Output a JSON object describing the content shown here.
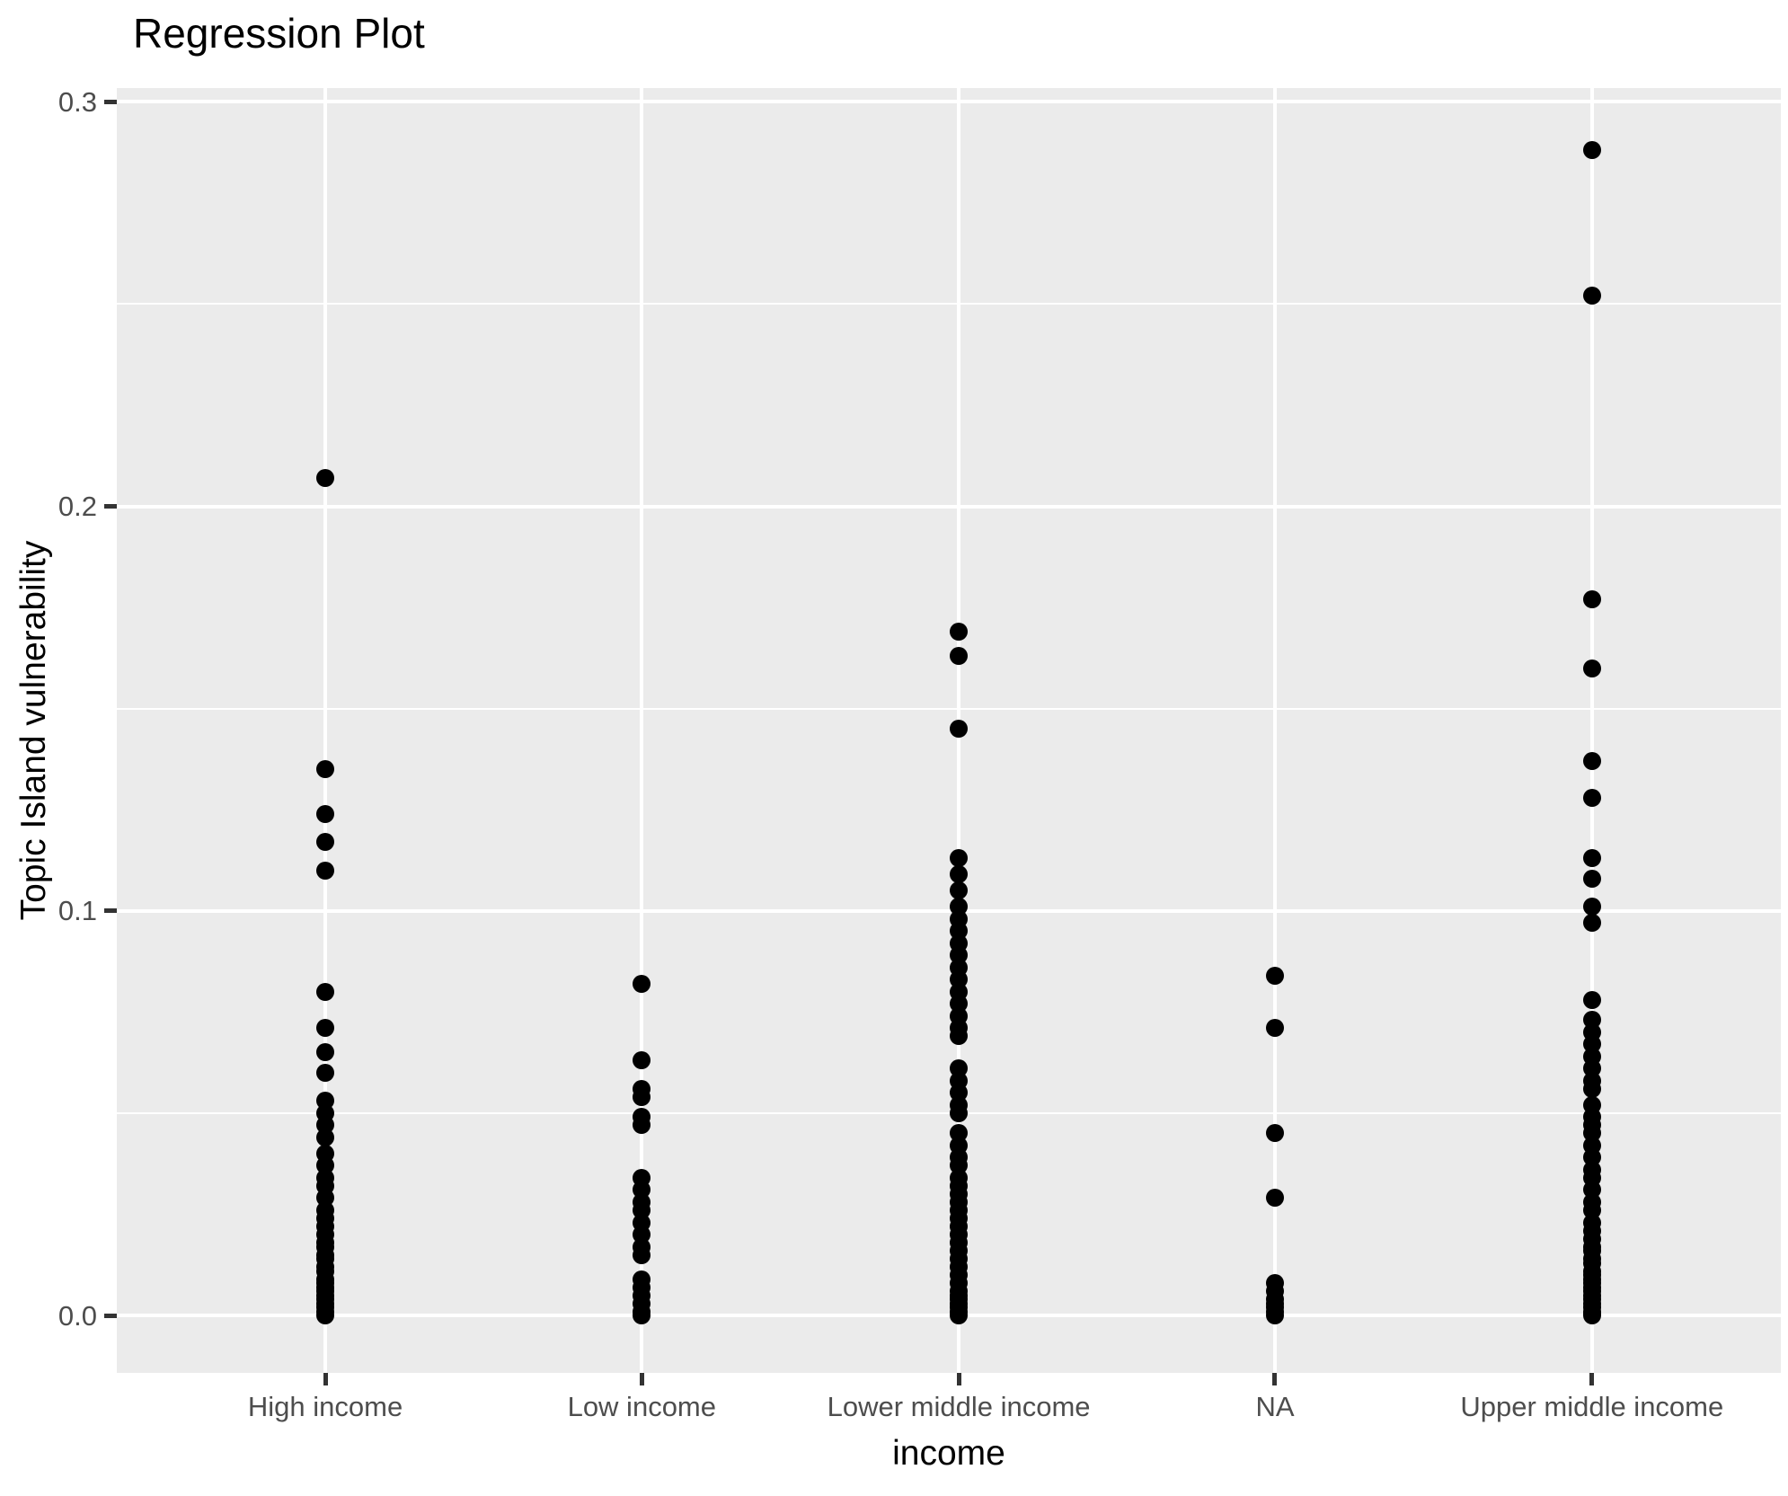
{
  "title": "Regression Plot",
  "chart_data": {
    "type": "scatter",
    "title": "Regression Plot",
    "xlabel": "income",
    "ylabel": "Topic Island vulnerability",
    "categories": [
      "High income",
      "Low income",
      "Lower middle income",
      "NA",
      "Upper middle income"
    ],
    "y_ticks": [
      0.0,
      0.1,
      0.2,
      0.3
    ],
    "y_tick_labels": [
      "0.0",
      "0.1",
      "0.2",
      "0.3"
    ],
    "y_gridlines_minor": [
      0.05,
      0.15,
      0.25
    ],
    "ylim": [
      -0.0142,
      0.3034
    ],
    "grid": "on",
    "legend_position": "none",
    "series": [
      {
        "name": "High income",
        "values": [
          0.207,
          0.135,
          0.124,
          0.117,
          0.11,
          0.08,
          0.071,
          0.065,
          0.06,
          0.053,
          0.05,
          0.047,
          0.044,
          0.04,
          0.037,
          0.034,
          0.032,
          0.029,
          0.026,
          0.024,
          0.022,
          0.02,
          0.018,
          0.017,
          0.015,
          0.014,
          0.012,
          0.011,
          0.009,
          0.008,
          0.007,
          0.006,
          0.005,
          0.004,
          0.003,
          0.002,
          0.001,
          0.0
        ]
      },
      {
        "name": "Low income",
        "values": [
          0.082,
          0.063,
          0.056,
          0.054,
          0.049,
          0.047,
          0.034,
          0.031,
          0.028,
          0.026,
          0.023,
          0.02,
          0.017,
          0.015,
          0.009,
          0.007,
          0.005,
          0.003,
          0.001,
          0.0
        ]
      },
      {
        "name": "Lower middle income",
        "values": [
          0.169,
          0.163,
          0.145,
          0.113,
          0.109,
          0.105,
          0.101,
          0.098,
          0.095,
          0.092,
          0.089,
          0.086,
          0.083,
          0.08,
          0.077,
          0.074,
          0.071,
          0.069,
          0.061,
          0.058,
          0.055,
          0.052,
          0.05,
          0.045,
          0.042,
          0.039,
          0.037,
          0.034,
          0.032,
          0.03,
          0.028,
          0.026,
          0.024,
          0.022,
          0.02,
          0.018,
          0.016,
          0.014,
          0.012,
          0.01,
          0.008,
          0.006,
          0.005,
          0.004,
          0.003,
          0.002,
          0.001,
          0.0
        ]
      },
      {
        "name": "NA",
        "values": [
          0.084,
          0.071,
          0.045,
          0.029,
          0.008,
          0.006,
          0.004,
          0.003,
          0.002,
          0.001,
          0.0
        ]
      },
      {
        "name": "Upper middle income",
        "values": [
          0.288,
          0.252,
          0.177,
          0.16,
          0.137,
          0.128,
          0.113,
          0.108,
          0.101,
          0.097,
          0.078,
          0.073,
          0.07,
          0.067,
          0.064,
          0.061,
          0.058,
          0.056,
          0.052,
          0.049,
          0.047,
          0.045,
          0.042,
          0.039,
          0.036,
          0.034,
          0.031,
          0.028,
          0.026,
          0.023,
          0.021,
          0.019,
          0.017,
          0.016,
          0.014,
          0.013,
          0.011,
          0.01,
          0.009,
          0.008,
          0.007,
          0.006,
          0.005,
          0.004,
          0.003,
          0.002,
          0.001,
          0.0005,
          0.0
        ]
      }
    ],
    "colors": {
      "point": "#000000",
      "panel_background": "#EBEBEB",
      "gridline": "#FFFFFF",
      "tick_label": "#4D4D4D",
      "tick_mark": "#333333",
      "text": "#000000"
    }
  }
}
